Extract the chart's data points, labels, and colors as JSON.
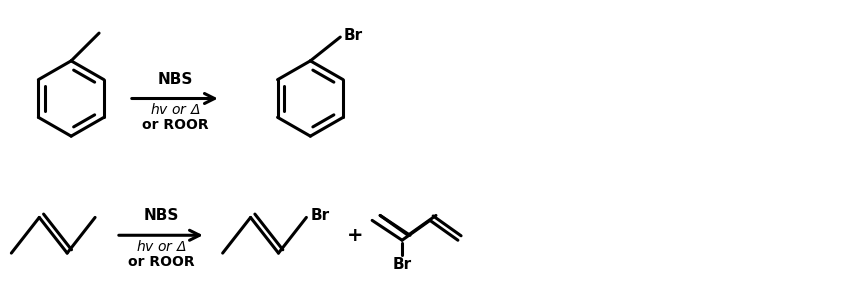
{
  "background_color": "#ffffff",
  "figsize": [
    8.46,
    3.08
  ],
  "dpi": 100,
  "arrow_label_line1": "NBS",
  "arrow_label_line2": "hv or Δ",
  "arrow_label_line3": "or ROOR",
  "plus_sign": "+",
  "br_label": "Br",
  "line_width": 2.2,
  "font_size": 10,
  "font_size_br": 11
}
